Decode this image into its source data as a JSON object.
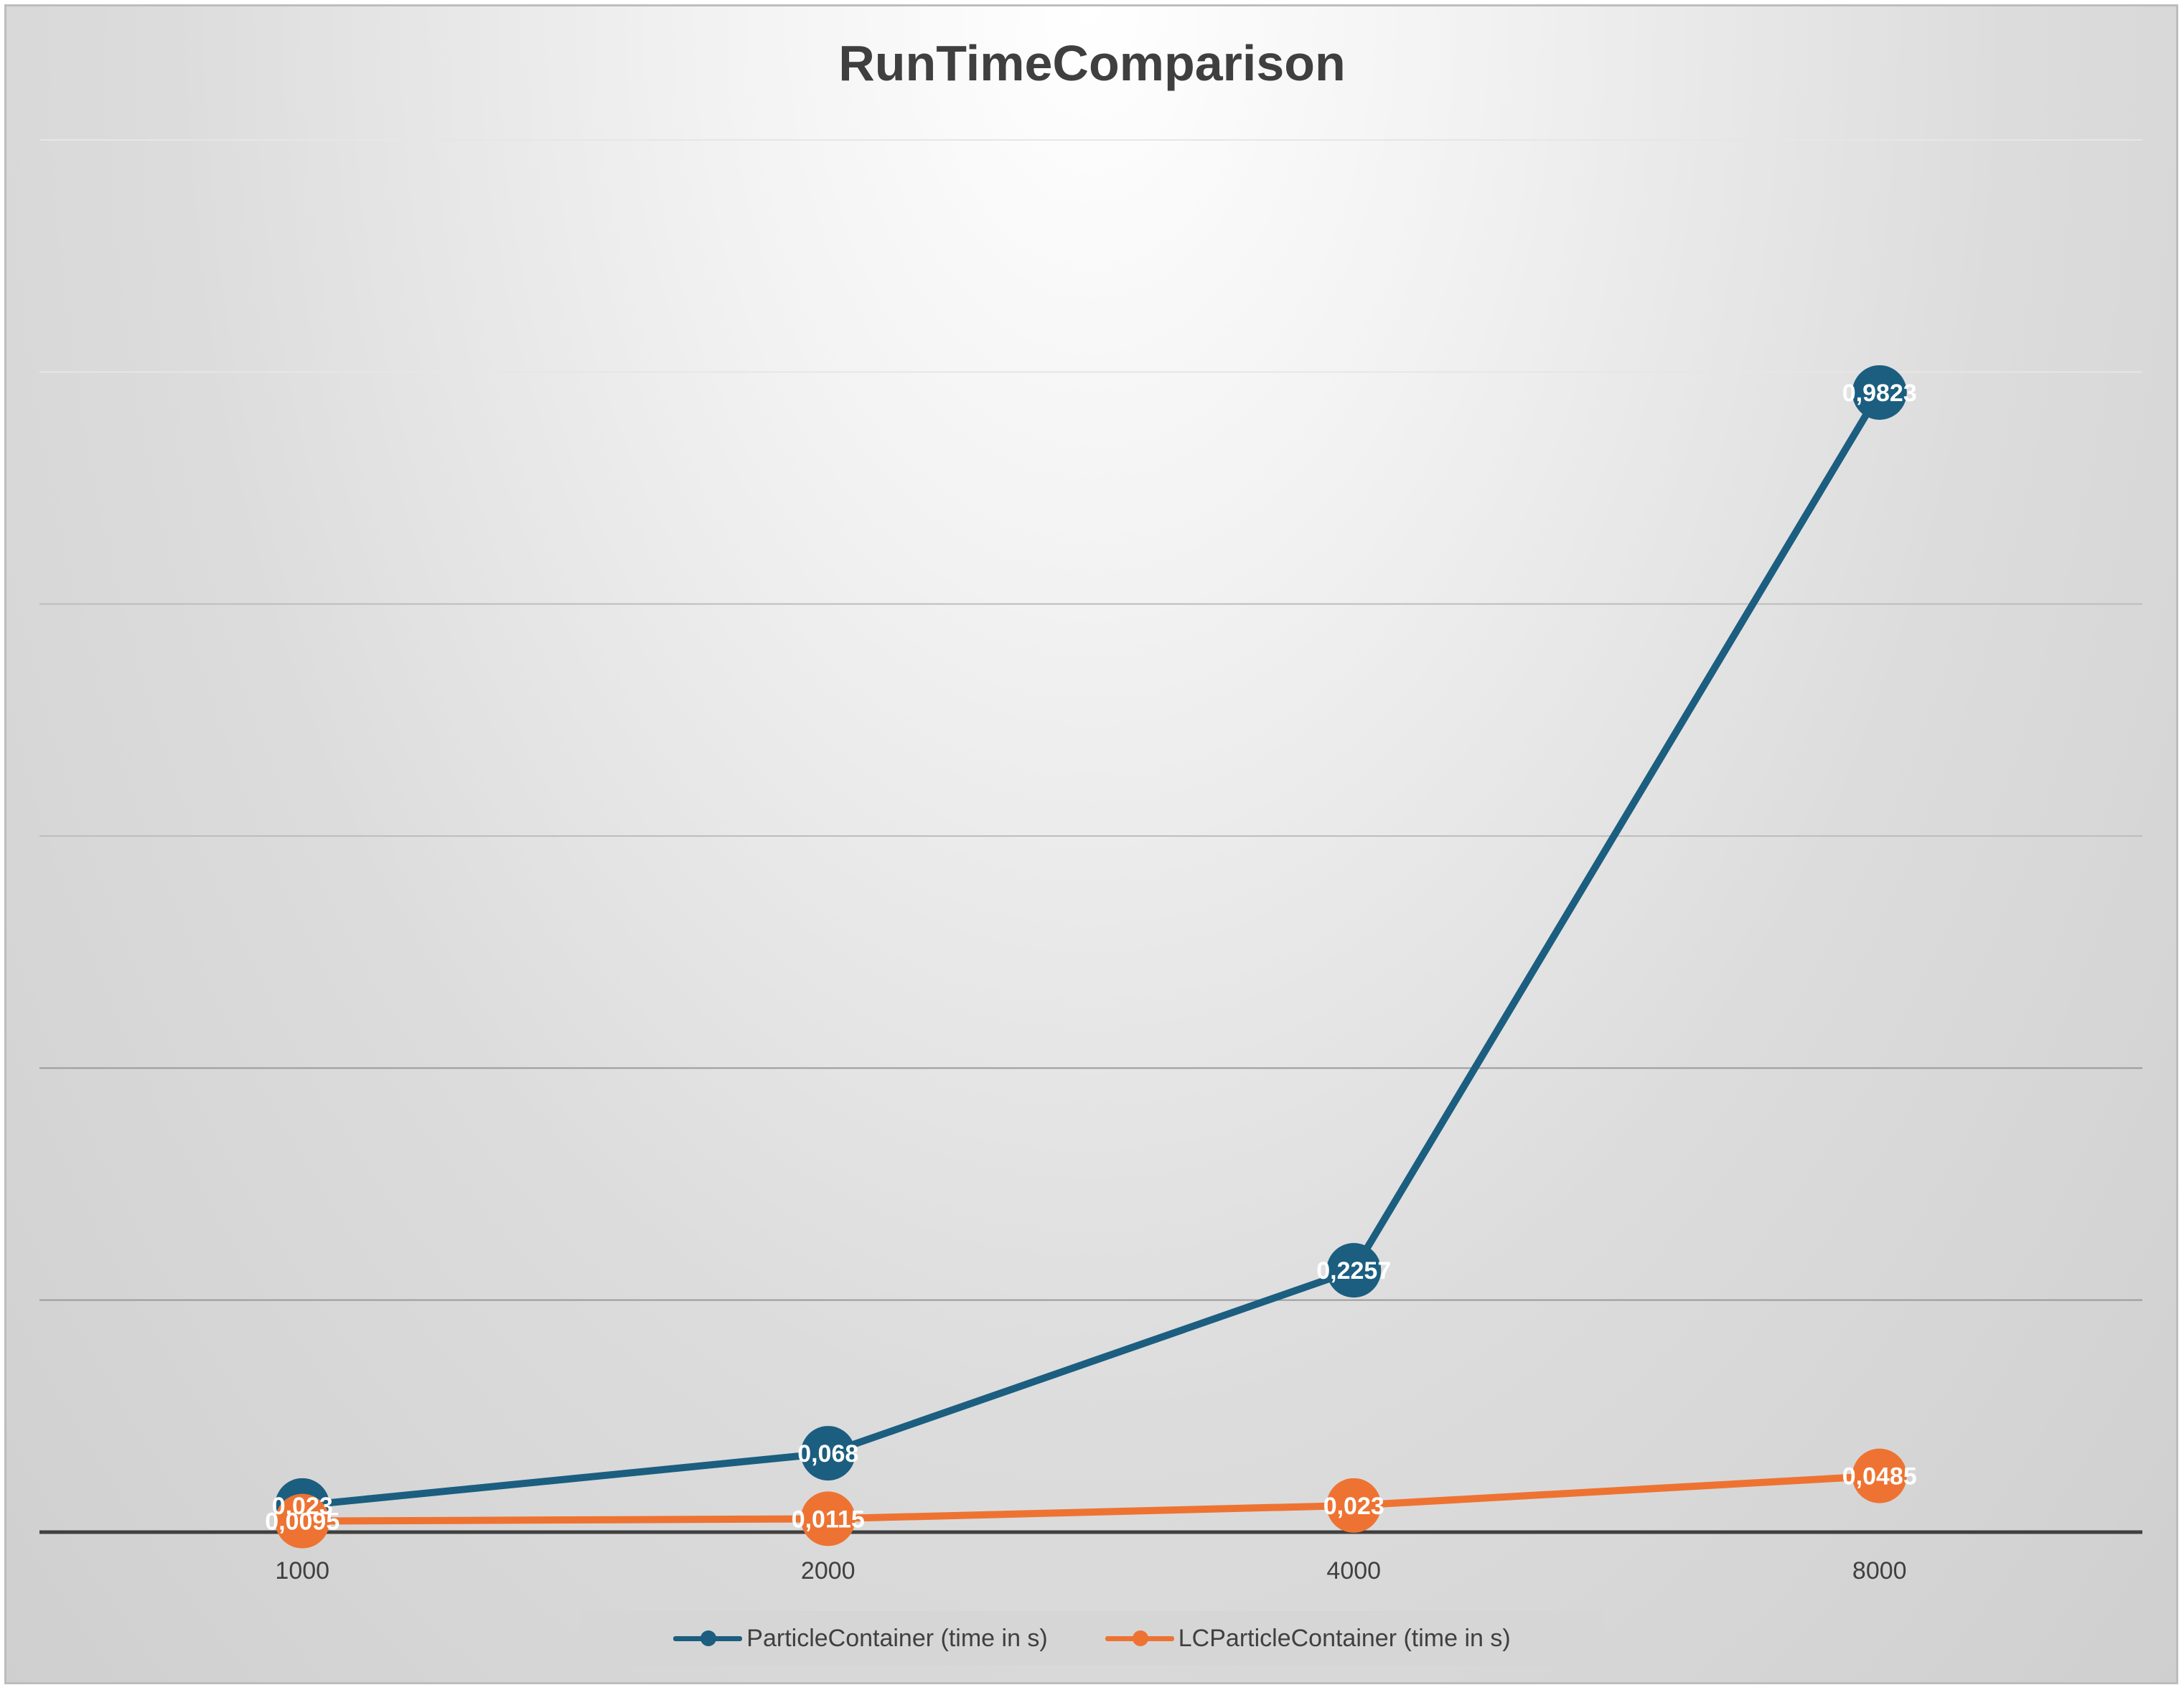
{
  "chart_data": {
    "type": "line",
    "title": "RunTimeComparison",
    "xlabel": "",
    "ylabel": "",
    "categories": [
      "1000",
      "2000",
      "4000",
      "8000"
    ],
    "ylim": [
      0,
      1.2
    ],
    "grid": true,
    "legend_position": "bottom",
    "series": [
      {
        "name": "ParticleContainer (time in s)",
        "color": "#1b5e80",
        "values": [
          0.023,
          0.068,
          0.2257,
          0.9823
        ],
        "labels": [
          "0,023",
          "0,068",
          "0,2257",
          "0,9823"
        ]
      },
      {
        "name": "LCParticleContainer (time in s)",
        "color": "#ee7332",
        "values": [
          0.0095,
          0.0115,
          0.023,
          0.0485
        ],
        "labels": [
          "0,0095",
          "0,0115",
          "0,023",
          "0,0485"
        ]
      }
    ]
  }
}
